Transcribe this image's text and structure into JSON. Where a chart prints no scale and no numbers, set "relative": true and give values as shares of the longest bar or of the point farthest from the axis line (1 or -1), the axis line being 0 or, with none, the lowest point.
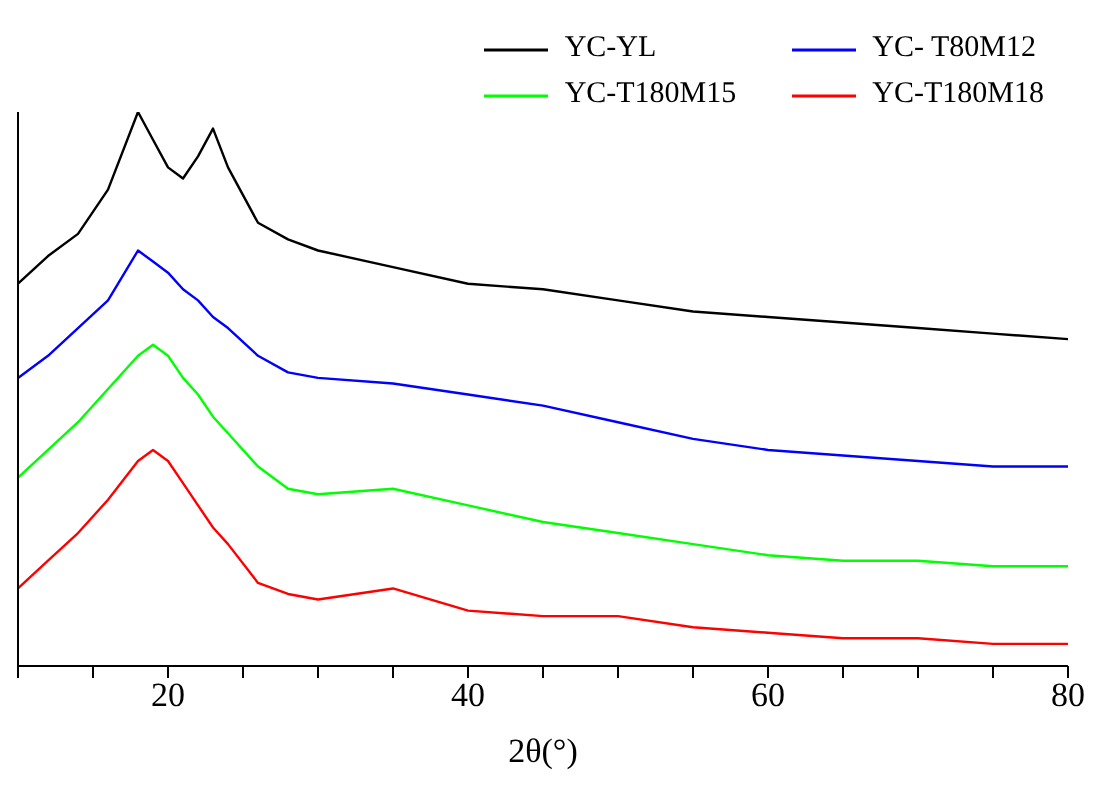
{
  "chart_data": {
    "type": "line",
    "xlabel": "2θ(°)",
    "relative": true,
    "xlim": [
      10,
      80
    ],
    "xticks": [
      {
        "value": 10,
        "label": null
      },
      {
        "value": 15,
        "label": null
      },
      20,
      {
        "value": 25,
        "label": null
      },
      {
        "value": 30,
        "label": null
      },
      {
        "value": 35,
        "label": null
      },
      40,
      {
        "value": 45,
        "label": null
      },
      {
        "value": 50,
        "label": null
      },
      {
        "value": 55,
        "label": null
      },
      60,
      {
        "value": 65,
        "label": null
      },
      {
        "value": 70,
        "label": null
      },
      {
        "value": 75,
        "label": null
      },
      80
    ],
    "x": [
      10,
      12,
      14,
      16,
      18,
      19,
      20,
      21,
      22,
      23,
      24,
      26,
      28,
      30,
      35,
      40,
      45,
      50,
      55,
      60,
      65,
      70,
      75,
      80
    ],
    "legend": "top right",
    "marker": "none",
    "series": [
      {
        "name": "YC-YL",
        "color": "#000000",
        "values": [
          0.69,
          0.74,
          0.78,
          0.86,
          1,
          0.95,
          0.9,
          0.88,
          0.92,
          0.97,
          0.9,
          0.8,
          0.77,
          0.75,
          0.72,
          0.69,
          0.68,
          0.66,
          0.64,
          0.63,
          0.62,
          0.61,
          0.6,
          0.59
        ]
      },
      {
        "name": "YC- T80M12",
        "color": "#0000ff",
        "values": [
          0.52,
          0.56,
          0.61,
          0.66,
          0.75,
          0.73,
          0.71,
          0.68,
          0.66,
          0.63,
          0.61,
          0.56,
          0.53,
          0.52,
          0.51,
          0.49,
          0.47,
          0.44,
          0.41,
          0.39,
          0.38,
          0.37,
          0.36,
          0.36
        ]
      },
      {
        "name": "YC-T180M15",
        "color": "#00ff00",
        "values": [
          0.34,
          0.39,
          0.44,
          0.5,
          0.56,
          0.58,
          0.56,
          0.52,
          0.49,
          0.45,
          0.42,
          0.36,
          0.32,
          0.31,
          0.32,
          0.29,
          0.26,
          0.24,
          0.22,
          0.2,
          0.19,
          0.19,
          0.18,
          0.18
        ]
      },
      {
        "name": "YC-T180M18",
        "color": "#ff0000",
        "values": [
          0.14,
          0.19,
          0.24,
          0.3,
          0.37,
          0.39,
          0.37,
          0.33,
          0.29,
          0.25,
          0.22,
          0.15,
          0.13,
          0.12,
          0.14,
          0.1,
          0.09,
          0.09,
          0.07,
          0.06,
          0.05,
          0.05,
          0.04,
          0.04
        ]
      }
    ]
  }
}
